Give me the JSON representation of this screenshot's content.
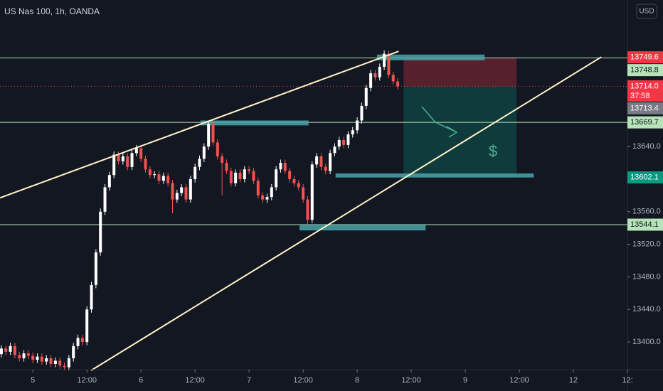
{
  "chart_data": {
    "type": "candlestick",
    "title": "US Nas 100, 1h, OANDA",
    "currency": "USD",
    "open": [
      13385,
      13392,
      13388,
      13395,
      13384,
      13380,
      13386,
      13383,
      13378,
      13382,
      13376,
      13380,
      13373,
      13377,
      13371,
      13369,
      13380,
      13395,
      13405,
      13400,
      13440,
      13470,
      13510,
      13560,
      13590,
      13605,
      13630,
      13622,
      13628,
      13615,
      13632,
      13638,
      13625,
      13612,
      13605,
      13606,
      13598,
      13604,
      13595,
      13575,
      13583,
      13590,
      13575,
      13600,
      13615,
      13625,
      13640,
      13668,
      13645,
      13628,
      13620,
      13610,
      13595,
      13608,
      13600,
      13612,
      13610,
      13598,
      13580,
      13575,
      13578,
      13590,
      13612,
      13620,
      13610,
      13600,
      13595,
      13590,
      13575,
      13550,
      13618,
      13628,
      13615,
      13610,
      13632,
      13640,
      13648,
      13642,
      13655,
      13660,
      13672,
      13690,
      13712,
      13730,
      13725,
      13738,
      13754,
      13728,
      13720
    ],
    "high": [
      13396,
      13396,
      13399,
      13399,
      13388,
      13390,
      13390,
      13387,
      13386,
      13386,
      13384,
      13384,
      13381,
      13381,
      13375,
      13384,
      13399,
      13409,
      13409,
      13444,
      13474,
      13514,
      13564,
      13594,
      13609,
      13634,
      13634,
      13632,
      13632,
      13636,
      13642,
      13642,
      13629,
      13616,
      13610,
      13610,
      13608,
      13608,
      13599,
      13587,
      13594,
      13594,
      13604,
      13619,
      13629,
      13644,
      13672,
      13672,
      13649,
      13632,
      13624,
      13614,
      13612,
      13612,
      13616,
      13616,
      13614,
      13602,
      13584,
      13582,
      13594,
      13616,
      13624,
      13624,
      13614,
      13604,
      13599,
      13594,
      13579,
      13622,
      13632,
      13632,
      13619,
      13636,
      13644,
      13652,
      13652,
      13659,
      13664,
      13676,
      13694,
      13716,
      13734,
      13734,
      13742,
      13758,
      13758,
      13732,
      13724
    ],
    "low": [
      13381,
      13384,
      13384,
      13380,
      13376,
      13376,
      13379,
      13374,
      13374,
      13372,
      13372,
      13369,
      13369,
      13367,
      13365,
      13365,
      13376,
      13391,
      13396,
      13396,
      13436,
      13466,
      13506,
      13556,
      13586,
      13601,
      13618,
      13618,
      13611,
      13611,
      13628,
      13621,
      13608,
      13601,
      13601,
      13594,
      13594,
      13591,
      13558,
      13571,
      13579,
      13571,
      13571,
      13596,
      13611,
      13621,
      13636,
      13641,
      13624,
      13580,
      13606,
      13591,
      13591,
      13596,
      13596,
      13606,
      13594,
      13576,
      13571,
      13571,
      13574,
      13586,
      13608,
      13606,
      13596,
      13591,
      13586,
      13571,
      13544,
      13546,
      13614,
      13611,
      13606,
      13606,
      13628,
      13636,
      13638,
      13638,
      13651,
      13656,
      13668,
      13686,
      13708,
      13721,
      13721,
      13734,
      13724,
      13716,
      13710
    ],
    "close": [
      13392,
      13388,
      13395,
      13384,
      13380,
      13386,
      13383,
      13378,
      13382,
      13376,
      13380,
      13373,
      13377,
      13371,
      13369,
      13380,
      13395,
      13405,
      13400,
      13440,
      13470,
      13510,
      13560,
      13590,
      13605,
      13630,
      13622,
      13628,
      13615,
      13632,
      13638,
      13625,
      13612,
      13605,
      13606,
      13598,
      13604,
      13595,
      13575,
      13583,
      13590,
      13575,
      13600,
      13615,
      13625,
      13640,
      13668,
      13645,
      13628,
      13620,
      13610,
      13595,
      13608,
      13600,
      13612,
      13610,
      13598,
      13580,
      13575,
      13578,
      13590,
      13612,
      13620,
      13610,
      13600,
      13595,
      13590,
      13575,
      13550,
      13618,
      13628,
      13615,
      13610,
      13632,
      13640,
      13648,
      13642,
      13655,
      13660,
      13672,
      13690,
      13712,
      13730,
      13725,
      13738,
      13754,
      13728,
      13720,
      13714
    ],
    "up_color": "#ffffff",
    "down_color": "#ef5350",
    "xlim": [
      -0.3,
      139
    ],
    "ylim": [
      13366,
      13820
    ],
    "xticks": [
      {
        "value": 7,
        "label": "5"
      },
      {
        "value": 19,
        "label": "12:00"
      },
      {
        "value": 31,
        "label": "6"
      },
      {
        "value": 43,
        "label": "12:00"
      },
      {
        "value": 55,
        "label": "7"
      },
      {
        "value": 67,
        "label": "12:00"
      },
      {
        "value": 79,
        "label": "8"
      },
      {
        "value": 91,
        "label": "12:00"
      },
      {
        "value": 103,
        "label": "9"
      },
      {
        "value": 115,
        "label": "12:00"
      },
      {
        "value": 127,
        "label": "12"
      },
      {
        "value": 139,
        "label": "12:"
      }
    ],
    "yticks": [
      {
        "value": 13400,
        "label": "13400.0"
      },
      {
        "value": 13440,
        "label": "13440.0"
      },
      {
        "value": 13480,
        "label": "13480.0"
      },
      {
        "value": 13520,
        "label": "13520.0"
      },
      {
        "value": 13560,
        "label": "13560.0"
      },
      {
        "value": 13640,
        "label": "13640.0"
      }
    ],
    "levels": [
      13748.8,
      13669.7,
      13544.1
    ],
    "level_color": "#b7e3b9",
    "trend_lines": [
      {
        "from": [
          -0.3,
          13577
        ],
        "to": [
          88.2,
          13757
        ]
      },
      {
        "from": [
          19.9,
          13365
        ],
        "to": [
          133.2,
          13750
        ]
      }
    ],
    "trend_color": "#fff3c9",
    "zones": [
      {
        "x": [
          83.4,
          107.3
        ],
        "y": [
          13746,
          13753
        ]
      },
      {
        "x": [
          44.2,
          68.2
        ],
        "y": [
          13666,
          13672
        ]
      },
      {
        "x": [
          74.2,
          118.2
        ],
        "y": [
          13602,
          13607
        ]
      },
      {
        "x": [
          66.2,
          94.2
        ],
        "y": [
          13537,
          13544
        ]
      }
    ],
    "zone_color": "#4aa3a8",
    "position": {
      "x": [
        89.3,
        114.4
      ],
      "stop": 13749.6,
      "entry": 13714.0,
      "target": 13602.1,
      "label": "$"
    },
    "price_tags": [
      {
        "value": 13749.6,
        "label": "13749.6",
        "color": "#f23645"
      },
      {
        "value": 13748.8,
        "label": "13748.8",
        "color": "#b7e3b9"
      },
      {
        "value": 13714.0,
        "label": "13714.0",
        "countdown": "37:58",
        "color": "#f23645"
      },
      {
        "value": 13713.4,
        "label": "13713.4",
        "color": "#787b86"
      },
      {
        "value": 13669.7,
        "label": "13669.7",
        "color": "#b7e3b9"
      },
      {
        "value": 13602.1,
        "label": "13602.1",
        "color": "#089981"
      },
      {
        "value": 13544.1,
        "label": "13544.1",
        "color": "#b7e3b9"
      }
    ]
  }
}
